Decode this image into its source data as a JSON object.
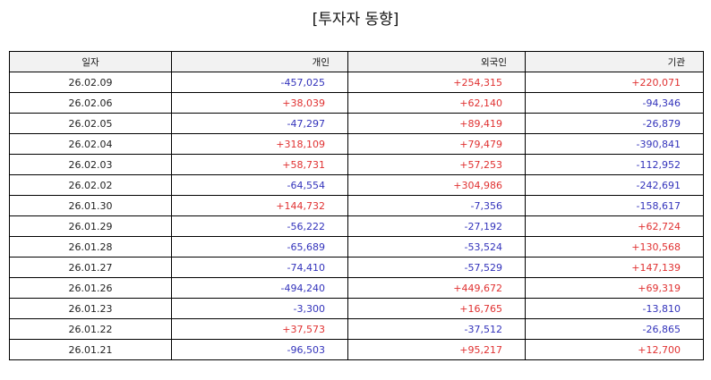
{
  "title": "[투자자 동향]",
  "colors": {
    "positive": "#e03131",
    "negative": "#3333bb"
  },
  "table": {
    "headers": [
      "일자",
      "개인",
      "외국인",
      "기관"
    ],
    "rows": [
      [
        "26.02.09",
        "-457,025",
        "+254,315",
        "+220,071"
      ],
      [
        "26.02.06",
        "+38,039",
        "+62,140",
        "-94,346"
      ],
      [
        "26.02.05",
        "-47,297",
        "+89,419",
        "-26,879"
      ],
      [
        "26.02.04",
        "+318,109",
        "+79,479",
        "-390,841"
      ],
      [
        "26.02.03",
        "+58,731",
        "+57,253",
        "-112,952"
      ],
      [
        "26.02.02",
        "-64,554",
        "+304,986",
        "-242,691"
      ],
      [
        "26.01.30",
        "+144,732",
        "-7,356",
        "-158,617"
      ],
      [
        "26.01.29",
        "-56,222",
        "-27,192",
        "+62,724"
      ],
      [
        "26.01.28",
        "-65,689",
        "-53,524",
        "+130,568"
      ],
      [
        "26.01.27",
        "-74,410",
        "-57,529",
        "+147,139"
      ],
      [
        "26.01.26",
        "-494,240",
        "+449,672",
        "+69,319"
      ],
      [
        "26.01.23",
        "-3,300",
        "+16,765",
        "-13,810"
      ],
      [
        "26.01.22",
        "+37,573",
        "-37,512",
        "-26,865"
      ],
      [
        "26.01.21",
        "-96,503",
        "+95,217",
        "+12,700"
      ]
    ]
  }
}
